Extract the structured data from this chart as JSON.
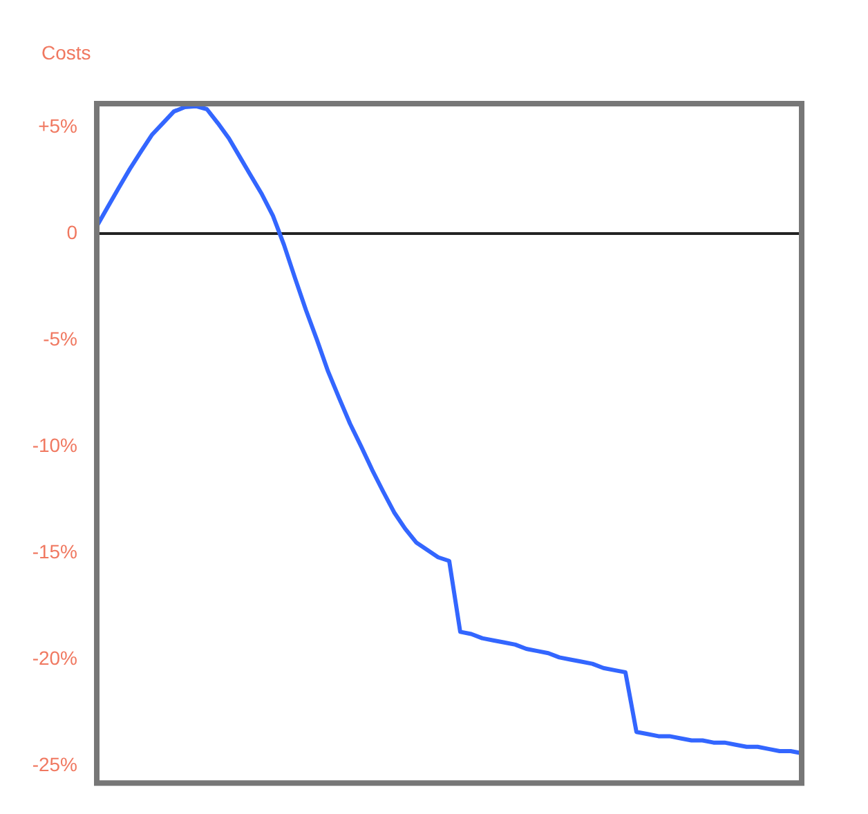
{
  "chart_data": {
    "type": "line",
    "ylabel": "Costs",
    "categories": [
      null,
      null,
      null,
      null,
      null,
      null,
      null,
      null,
      null,
      null,
      null,
      null,
      null,
      null,
      null,
      null,
      null,
      null,
      null,
      null,
      null,
      null,
      null,
      null,
      null,
      null,
      null,
      null,
      null,
      null,
      null,
      null,
      null,
      null,
      null,
      null,
      null,
      null,
      null,
      null,
      null,
      null,
      null,
      null,
      null,
      null,
      null,
      null,
      null,
      null,
      null,
      null,
      null,
      null,
      null,
      null,
      null,
      null,
      null,
      null,
      null,
      null,
      null,
      null,
      null
    ],
    "ylim": [
      -25.8,
      6.1
    ],
    "yticks": [
      {
        "value": 5,
        "label": "+5%"
      },
      {
        "value": 0,
        "label": "0"
      },
      {
        "value": -5,
        "label": "-5%"
      },
      {
        "value": -10,
        "label": "-10%"
      },
      {
        "value": -15,
        "label": "-15%"
      },
      {
        "value": -20,
        "label": "-20%"
      },
      {
        "value": -25,
        "label": "-25%"
      }
    ],
    "tick_labels": "y",
    "grid": false,
    "legend": false,
    "marker": "none",
    "line_style": "solid",
    "series": [
      {
        "color": "#3366ff",
        "values": [
          0.34,
          1.25,
          2.15,
          3.03,
          3.84,
          4.63,
          5.18,
          5.73,
          5.94,
          5.98,
          5.84,
          5.18,
          4.47,
          3.59,
          2.71,
          1.84,
          0.83,
          -0.53,
          -2.09,
          -3.6,
          -5.0,
          -6.47,
          -7.72,
          -8.93,
          -9.99,
          -11.09,
          -12.11,
          -13.09,
          -13.86,
          -14.5,
          -14.85,
          -15.2,
          -15.37,
          -18.7,
          -18.8,
          -19.0,
          -19.1,
          -19.2,
          -19.3,
          -19.5,
          -19.6,
          -19.7,
          -19.9,
          -20.0,
          -20.1,
          -20.2,
          -20.4,
          -20.5,
          -20.6,
          -23.4,
          -23.5,
          -23.6,
          -23.6,
          -23.7,
          -23.8,
          -23.8,
          -23.9,
          -23.9,
          -24.0,
          -24.1,
          -24.1,
          -24.2,
          -24.3,
          -24.3,
          -24.4
        ]
      }
    ],
    "ref_lines": [
      {
        "axis": "y",
        "value": 0,
        "color": "#222222",
        "line_style": "solid"
      }
    ]
  }
}
